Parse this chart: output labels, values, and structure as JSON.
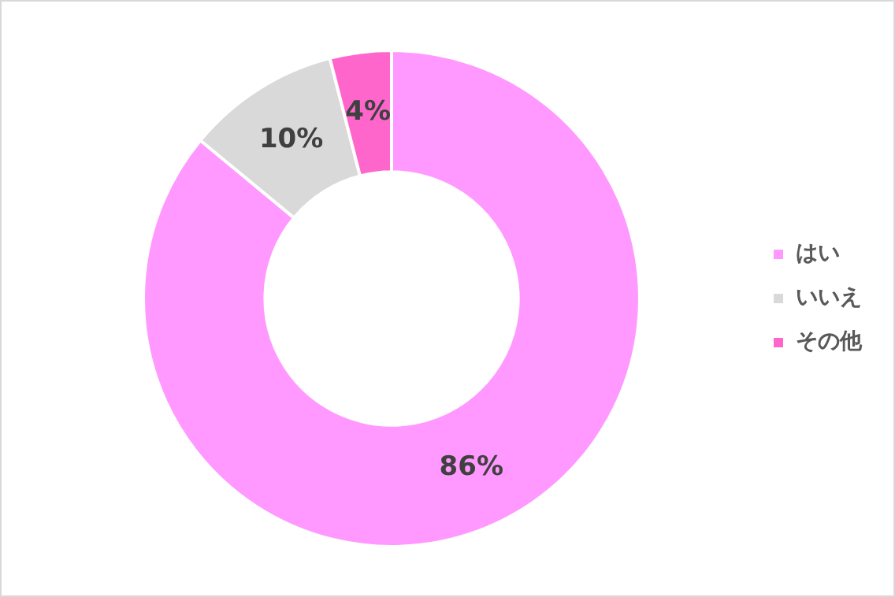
{
  "chart_data": {
    "type": "donut",
    "categories": [
      "はい",
      "いいえ",
      "その他"
    ],
    "values": [
      86,
      10,
      4
    ],
    "colors": [
      "#ff99ff",
      "#d9d9d9",
      "#ff66cc"
    ],
    "value_labels": [
      "86%",
      "10%",
      "4%"
    ],
    "legend": "right"
  }
}
